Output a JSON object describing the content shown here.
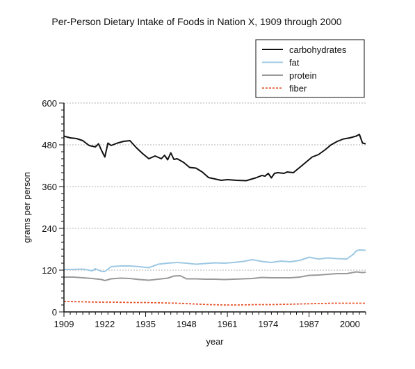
{
  "chart_data": {
    "type": "line",
    "title": "Per-Person Dietary Intake of Foods in Nation X, 1909 through 2000",
    "xlabel": "year",
    "ylabel": "grams per person",
    "xlim": [
      1909,
      2005
    ],
    "ylim": [
      0,
      600
    ],
    "xticks": [
      1909,
      1922,
      1935,
      1948,
      1961,
      1974,
      1987,
      2000
    ],
    "yticks": [
      0,
      120,
      240,
      360,
      480,
      600
    ],
    "grid": true,
    "legend_position": "top-right",
    "series": [
      {
        "name": "carbohydrates",
        "color": "#111111",
        "style": "solid",
        "x": [
          1909,
          1911,
          1913,
          1915,
          1917,
          1919,
          1920,
          1921,
          1922,
          1923,
          1924,
          1926,
          1928,
          1930,
          1932,
          1934,
          1936,
          1938,
          1940,
          1941,
          1942,
          1943,
          1944,
          1945,
          1946,
          1947,
          1949,
          1951,
          1953,
          1955,
          1957,
          1959,
          1961,
          1964,
          1967,
          1970,
          1972,
          1973,
          1974,
          1975,
          1976,
          1977,
          1979,
          1980,
          1982,
          1984,
          1986,
          1988,
          1990,
          1992,
          1994,
          1996,
          1998,
          2000,
          2002,
          2003,
          2004,
          2005
        ],
        "y": [
          505,
          500,
          498,
          492,
          478,
          474,
          483,
          463,
          445,
          485,
          478,
          485,
          490,
          492,
          472,
          455,
          440,
          448,
          440,
          450,
          437,
          457,
          438,
          440,
          435,
          430,
          415,
          413,
          402,
          386,
          382,
          378,
          380,
          378,
          377,
          385,
          392,
          390,
          398,
          385,
          398,
          400,
          398,
          402,
          400,
          415,
          430,
          445,
          452,
          465,
          480,
          490,
          497,
          500,
          505,
          510,
          485,
          483
        ]
      },
      {
        "name": "fat",
        "color": "#9cc8e3",
        "style": "solid",
        "x": [
          1909,
          1912,
          1915,
          1918,
          1919,
          1921,
          1922,
          1924,
          1927,
          1930,
          1933,
          1936,
          1939,
          1942,
          1945,
          1948,
          1951,
          1954,
          1957,
          1960,
          1963,
          1966,
          1969,
          1972,
          1975,
          1978,
          1981,
          1984,
          1987,
          1990,
          1993,
          1996,
          1999,
          2001,
          2002,
          2003,
          2005
        ],
        "y": [
          122,
          122,
          123,
          118,
          124,
          116,
          116,
          130,
          132,
          132,
          130,
          127,
          137,
          140,
          142,
          140,
          137,
          139,
          141,
          140,
          142,
          145,
          150,
          145,
          142,
          146,
          144,
          148,
          157,
          152,
          155,
          153,
          152,
          165,
          175,
          178,
          177
        ]
      },
      {
        "name": "protein",
        "color": "#999999",
        "style": "solid",
        "x": [
          1909,
          1912,
          1915,
          1918,
          1921,
          1922,
          1924,
          1927,
          1930,
          1933,
          1936,
          1939,
          1942,
          1944,
          1946,
          1948,
          1951,
          1954,
          1957,
          1960,
          1963,
          1966,
          1969,
          1972,
          1975,
          1978,
          1981,
          1984,
          1987,
          1990,
          1993,
          1996,
          1999,
          2002,
          2004,
          2005
        ],
        "y": [
          100,
          100,
          98,
          96,
          93,
          90,
          95,
          97,
          96,
          93,
          91,
          94,
          97,
          103,
          104,
          95,
          95,
          94,
          94,
          93,
          94,
          95,
          96,
          99,
          98,
          98,
          98,
          100,
          105,
          106,
          108,
          110,
          110,
          115,
          113,
          114
        ]
      },
      {
        "name": "fiber",
        "color": "#e8542c",
        "style": "dashed",
        "x": [
          1909,
          1915,
          1920,
          1925,
          1930,
          1935,
          1940,
          1945,
          1950,
          1955,
          1960,
          1965,
          1970,
          1975,
          1980,
          1985,
          1990,
          1995,
          2000,
          2005
        ],
        "y": [
          30,
          29,
          28,
          28,
          27,
          27,
          26,
          25,
          23,
          21,
          20,
          20,
          21,
          21,
          22,
          23,
          24,
          25,
          25,
          25
        ]
      }
    ]
  }
}
